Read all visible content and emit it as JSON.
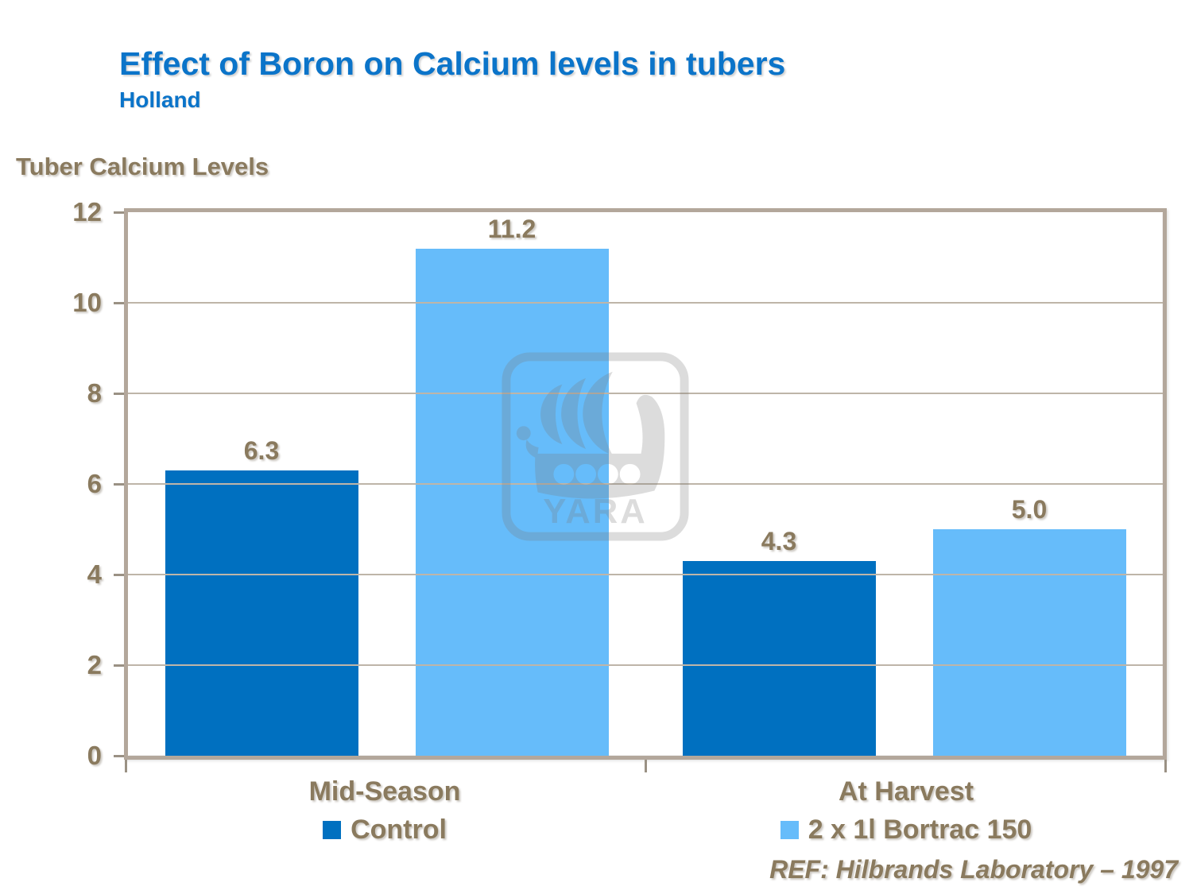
{
  "slide": {
    "title": "Effect of Boron on Calcium levels in tubers",
    "subtitle": "Holland",
    "axis_title": "Tuber Calcium Levels",
    "reference": "REF: Hilbrands Laboratory – 1997",
    "watermark_text": "YARA",
    "watermark_icon": "viking-ship-icon"
  },
  "colors": {
    "title_blue": "#0b74c9",
    "text_brown": "#8a7a5e",
    "control_blue": "#0070c0",
    "bortrac_blue": "#66bcfa",
    "frame_tan": "#b3a79b",
    "gridline_gray": "#beb5a8",
    "watermark_gray": "#7a7a7a"
  },
  "chart_data": {
    "type": "bar",
    "title": "Effect of Boron on Calcium levels in tubers",
    "subtitle": "Holland",
    "ylabel": "Tuber Calcium Levels",
    "xlabel": "",
    "categories": [
      "Mid-Season",
      "At Harvest"
    ],
    "series": [
      {
        "name": "Control",
        "color": "#0070c0",
        "values": [
          6.3,
          4.3
        ]
      },
      {
        "name": "2 x 1l Bortrac 150",
        "color": "#66bcfa",
        "values": [
          11.2,
          5.0
        ]
      }
    ],
    "data_labels": [
      "6.3",
      "11.2",
      "4.3",
      "5.0"
    ],
    "ylim": [
      0,
      12
    ],
    "yticks": [
      0,
      2,
      4,
      6,
      8,
      10,
      12
    ],
    "grid": true,
    "legend_position": "bottom",
    "annotation": "REF: Hilbrands Laboratory – 1997"
  }
}
